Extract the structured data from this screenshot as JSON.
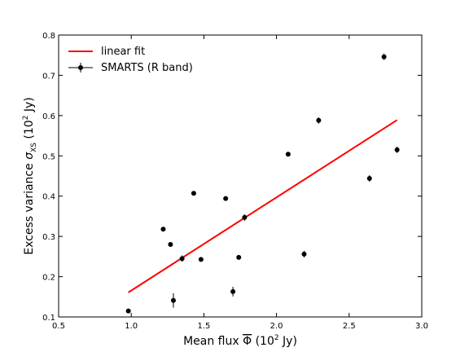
{
  "chart_data": {
    "type": "scatter",
    "title": "",
    "xlabel": "Mean flux Φ̅ (10² Jy)",
    "ylabel": "Excess variance σXS (10² Jy)",
    "xlim": [
      0.5,
      3.0
    ],
    "ylim": [
      0.1,
      0.8
    ],
    "xticks": [
      "0.5",
      "1.0",
      "1.5",
      "2.0",
      "2.5",
      "3.0"
    ],
    "yticks": [
      "0.1",
      "0.2",
      "0.3",
      "0.4",
      "0.5",
      "0.6",
      "0.7",
      "0.8"
    ],
    "grid": false,
    "legend_position": "top-left",
    "series": [
      {
        "name": "SMARTS (R band)",
        "kind": "scatter-errorbar",
        "color": "#000000",
        "points": [
          {
            "x": 0.98,
            "y": 0.115,
            "yerr": 0.005
          },
          {
            "x": 1.22,
            "y": 0.318,
            "yerr": 0.005
          },
          {
            "x": 1.27,
            "y": 0.28,
            "yerr": 0.005
          },
          {
            "x": 1.29,
            "y": 0.141,
            "yerr": 0.018
          },
          {
            "x": 1.35,
            "y": 0.245,
            "yerr": 0.008
          },
          {
            "x": 1.43,
            "y": 0.407,
            "yerr": 0.005
          },
          {
            "x": 1.48,
            "y": 0.243,
            "yerr": 0.005
          },
          {
            "x": 1.65,
            "y": 0.394,
            "yerr": 0.005
          },
          {
            "x": 1.7,
            "y": 0.163,
            "yerr": 0.012
          },
          {
            "x": 1.74,
            "y": 0.248,
            "yerr": 0.005
          },
          {
            "x": 1.78,
            "y": 0.347,
            "yerr": 0.008
          },
          {
            "x": 2.08,
            "y": 0.504,
            "yerr": 0.005
          },
          {
            "x": 2.19,
            "y": 0.256,
            "yerr": 0.008
          },
          {
            "x": 2.29,
            "y": 0.588,
            "yerr": 0.008
          },
          {
            "x": 2.64,
            "y": 0.444,
            "yerr": 0.008
          },
          {
            "x": 2.74,
            "y": 0.746,
            "yerr": 0.008
          },
          {
            "x": 2.83,
            "y": 0.515,
            "yerr": 0.008
          }
        ]
      },
      {
        "name": "linear fit",
        "kind": "line",
        "color": "#ff0000",
        "points": [
          {
            "x": 0.98,
            "y": 0.161
          },
          {
            "x": 2.83,
            "y": 0.589
          }
        ]
      }
    ]
  }
}
